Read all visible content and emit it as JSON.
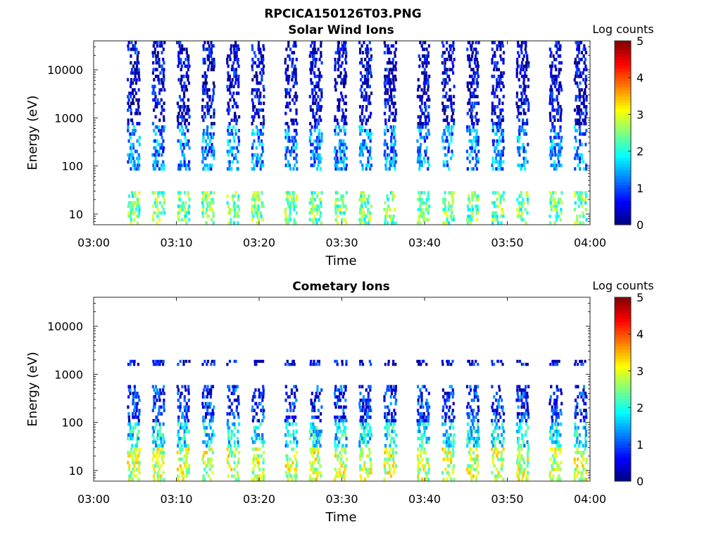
{
  "figure": {
    "title": "RPCICA150126T03.PNG"
  },
  "chart_data": [
    {
      "type": "heatmap",
      "title": "Solar Wind Ions",
      "xlabel": "Time",
      "ylabel": "Energy (eV)",
      "x_range": [
        "03:00",
        "04:00"
      ],
      "x_ticks": [
        "03:00",
        "03:10",
        "03:20",
        "03:30",
        "03:40",
        "03:50",
        "04:00"
      ],
      "y_scale": "log",
      "y_range": [
        6,
        40000
      ],
      "y_ticks": [
        "10",
        "100",
        "1000",
        "10000"
      ],
      "colorbar": {
        "label": "Log counts",
        "range": [
          0,
          5
        ],
        "ticks": [
          "0",
          "1",
          "2",
          "3",
          "4",
          "5"
        ],
        "colormap": "jet"
      },
      "sweep_start_times": [
        "03:04",
        "03:07",
        "03:10",
        "03:13",
        "03:16",
        "03:19",
        "03:23",
        "03:26",
        "03:29",
        "03:32",
        "03:35",
        "03:39",
        "03:42",
        "03:45",
        "03:48",
        "03:51",
        "03:55",
        "03:58"
      ],
      "bands": [
        {
          "energy_range": [
            6,
            30
          ],
          "log_counts": 2.4
        },
        {
          "energy_range": [
            80,
            700
          ],
          "log_counts": 1.3
        },
        {
          "energy_range": [
            700,
            40000
          ],
          "log_counts": 0.4
        }
      ]
    },
    {
      "type": "heatmap",
      "title": "Cometary Ions",
      "xlabel": "Time",
      "ylabel": "Energy (eV)",
      "x_range": [
        "03:00",
        "04:00"
      ],
      "x_ticks": [
        "03:00",
        "03:10",
        "03:20",
        "03:30",
        "03:40",
        "03:50",
        "04:00"
      ],
      "y_scale": "log",
      "y_range": [
        6,
        40000
      ],
      "y_ticks": [
        "10",
        "100",
        "1000",
        "10000"
      ],
      "colorbar": {
        "label": "Log counts",
        "range": [
          0,
          5
        ],
        "ticks": [
          "0",
          "1",
          "2",
          "3",
          "4",
          "5"
        ],
        "colormap": "jet"
      },
      "sweep_start_times": [
        "03:04",
        "03:07",
        "03:10",
        "03:13",
        "03:16",
        "03:19",
        "03:23",
        "03:26",
        "03:29",
        "03:32",
        "03:35",
        "03:39",
        "03:42",
        "03:45",
        "03:48",
        "03:51",
        "03:55",
        "03:58"
      ],
      "bands": [
        {
          "energy_range": [
            6,
            30
          ],
          "log_counts": 2.8
        },
        {
          "energy_range": [
            30,
            100
          ],
          "log_counts": 1.8
        },
        {
          "energy_range": [
            100,
            600
          ],
          "log_counts": 0.8
        },
        {
          "energy_range": [
            1500,
            2000
          ],
          "log_counts": 0.5
        }
      ]
    }
  ]
}
